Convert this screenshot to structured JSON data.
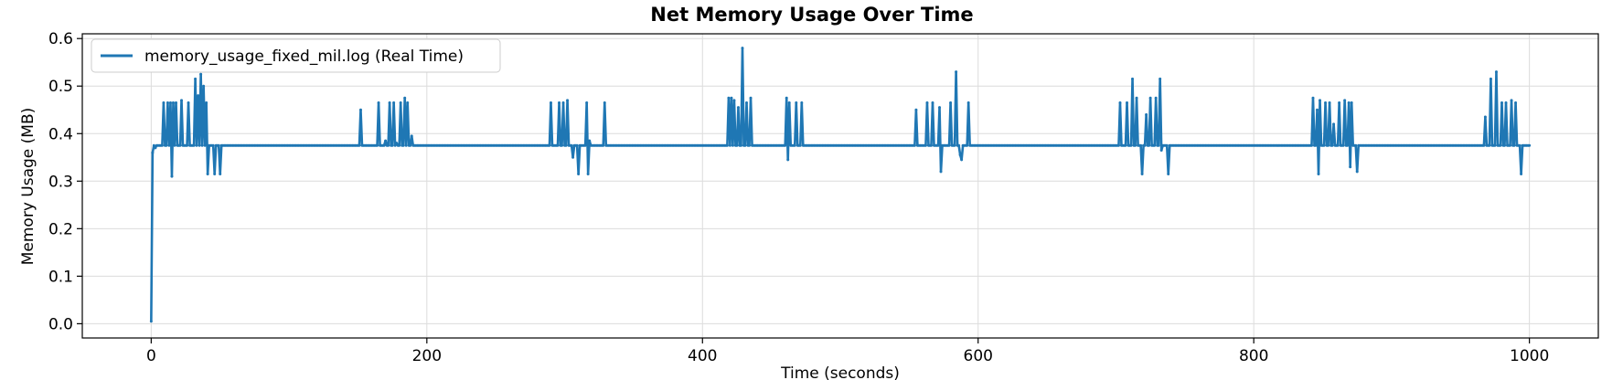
{
  "chart_data": {
    "type": "line",
    "title": "Net Memory Usage Over Time",
    "xlabel": "Time (seconds)",
    "ylabel": "Memory Usage (MB)",
    "xlim": [
      -50,
      1050
    ],
    "ylim": [
      -0.03,
      0.61
    ],
    "xticks": [
      0,
      200,
      400,
      600,
      800,
      1000
    ],
    "yticks": [
      0.0,
      0.1,
      0.2,
      0.3,
      0.4,
      0.5,
      0.6
    ],
    "ytick_labels": [
      "0.0",
      "0.1",
      "0.2",
      "0.3",
      "0.4",
      "0.5",
      "0.6"
    ],
    "grid": true,
    "legend_position": "top-left",
    "series": [
      {
        "name": "memory_usage_fixed_mil.log (Real Time)",
        "color": "#1f77b4",
        "baseline": 0.375,
        "x_range": [
          0,
          1000
        ],
        "points": [
          [
            0,
            0.005
          ],
          [
            1,
            0.36
          ],
          [
            3,
            0.37
          ],
          [
            5,
            0.375
          ],
          [
            8,
            0.375
          ],
          [
            9,
            0.465
          ],
          [
            10,
            0.375
          ],
          [
            12,
            0.465
          ],
          [
            13,
            0.375
          ],
          [
            14,
            0.465
          ],
          [
            15,
            0.31
          ],
          [
            16,
            0.465
          ],
          [
            17,
            0.375
          ],
          [
            18,
            0.465
          ],
          [
            19,
            0.375
          ],
          [
            22,
            0.47
          ],
          [
            23,
            0.375
          ],
          [
            27,
            0.465
          ],
          [
            28,
            0.375
          ],
          [
            32,
            0.515
          ],
          [
            33,
            0.375
          ],
          [
            34,
            0.48
          ],
          [
            35,
            0.375
          ],
          [
            36,
            0.525
          ],
          [
            37,
            0.375
          ],
          [
            38,
            0.5
          ],
          [
            39,
            0.375
          ],
          [
            40,
            0.465
          ],
          [
            41,
            0.315
          ],
          [
            42,
            0.375
          ],
          [
            46,
            0.315
          ],
          [
            47,
            0.375
          ],
          [
            50,
            0.315
          ],
          [
            51,
            0.375
          ],
          [
            152,
            0.45
          ],
          [
            153,
            0.375
          ],
          [
            165,
            0.465
          ],
          [
            166,
            0.375
          ],
          [
            170,
            0.385
          ],
          [
            171,
            0.375
          ],
          [
            173,
            0.465
          ],
          [
            174,
            0.375
          ],
          [
            176,
            0.465
          ],
          [
            177,
            0.375
          ],
          [
            178,
            0.38
          ],
          [
            179,
            0.375
          ],
          [
            181,
            0.465
          ],
          [
            182,
            0.375
          ],
          [
            184,
            0.475
          ],
          [
            185,
            0.375
          ],
          [
            186,
            0.465
          ],
          [
            187,
            0.375
          ],
          [
            189,
            0.395
          ],
          [
            190,
            0.375
          ],
          [
            290,
            0.465
          ],
          [
            291,
            0.375
          ],
          [
            296,
            0.465
          ],
          [
            297,
            0.375
          ],
          [
            299,
            0.465
          ],
          [
            300,
            0.375
          ],
          [
            302,
            0.47
          ],
          [
            303,
            0.375
          ],
          [
            306,
            0.35
          ],
          [
            307,
            0.375
          ],
          [
            310,
            0.315
          ],
          [
            311,
            0.375
          ],
          [
            316,
            0.465
          ],
          [
            317,
            0.315
          ],
          [
            318,
            0.385
          ],
          [
            319,
            0.375
          ],
          [
            329,
            0.465
          ],
          [
            330,
            0.375
          ],
          [
            419,
            0.475
          ],
          [
            420,
            0.375
          ],
          [
            421,
            0.475
          ],
          [
            422,
            0.375
          ],
          [
            423,
            0.47
          ],
          [
            424,
            0.375
          ],
          [
            426,
            0.455
          ],
          [
            427,
            0.375
          ],
          [
            429,
            0.58
          ],
          [
            430,
            0.375
          ],
          [
            432,
            0.465
          ],
          [
            433,
            0.375
          ],
          [
            435,
            0.475
          ],
          [
            436,
            0.375
          ],
          [
            461,
            0.475
          ],
          [
            462,
            0.345
          ],
          [
            463,
            0.465
          ],
          [
            464,
            0.375
          ],
          [
            468,
            0.465
          ],
          [
            469,
            0.375
          ],
          [
            472,
            0.465
          ],
          [
            473,
            0.375
          ],
          [
            555,
            0.45
          ],
          [
            556,
            0.375
          ],
          [
            563,
            0.465
          ],
          [
            564,
            0.375
          ],
          [
            567,
            0.465
          ],
          [
            568,
            0.375
          ],
          [
            572,
            0.455
          ],
          [
            573,
            0.32
          ],
          [
            574,
            0.375
          ],
          [
            580,
            0.465
          ],
          [
            581,
            0.375
          ],
          [
            584,
            0.53
          ],
          [
            585,
            0.375
          ],
          [
            587,
            0.355
          ],
          [
            588,
            0.345
          ],
          [
            589,
            0.375
          ],
          [
            593,
            0.465
          ],
          [
            594,
            0.375
          ],
          [
            703,
            0.465
          ],
          [
            704,
            0.375
          ],
          [
            708,
            0.465
          ],
          [
            709,
            0.375
          ],
          [
            712,
            0.515
          ],
          [
            713,
            0.375
          ],
          [
            715,
            0.475
          ],
          [
            716,
            0.375
          ],
          [
            719,
            0.315
          ],
          [
            720,
            0.375
          ],
          [
            722,
            0.44
          ],
          [
            723,
            0.375
          ],
          [
            725,
            0.475
          ],
          [
            726,
            0.375
          ],
          [
            729,
            0.475
          ],
          [
            730,
            0.375
          ],
          [
            732,
            0.515
          ],
          [
            733,
            0.365
          ],
          [
            734,
            0.375
          ],
          [
            738,
            0.315
          ],
          [
            739,
            0.375
          ],
          [
            843,
            0.475
          ],
          [
            844,
            0.375
          ],
          [
            846,
            0.45
          ],
          [
            847,
            0.315
          ],
          [
            848,
            0.47
          ],
          [
            849,
            0.375
          ],
          [
            852,
            0.465
          ],
          [
            853,
            0.375
          ],
          [
            855,
            0.465
          ],
          [
            856,
            0.375
          ],
          [
            858,
            0.42
          ],
          [
            859,
            0.375
          ],
          [
            862,
            0.465
          ],
          [
            863,
            0.375
          ],
          [
            866,
            0.47
          ],
          [
            867,
            0.375
          ],
          [
            869,
            0.465
          ],
          [
            870,
            0.33
          ],
          [
            871,
            0.465
          ],
          [
            872,
            0.375
          ],
          [
            875,
            0.32
          ],
          [
            876,
            0.375
          ],
          [
            968,
            0.435
          ],
          [
            969,
            0.375
          ],
          [
            972,
            0.515
          ],
          [
            973,
            0.375
          ],
          [
            976,
            0.53
          ],
          [
            977,
            0.375
          ],
          [
            980,
            0.465
          ],
          [
            981,
            0.375
          ],
          [
            983,
            0.465
          ],
          [
            984,
            0.375
          ],
          [
            987,
            0.47
          ],
          [
            988,
            0.375
          ],
          [
            990,
            0.465
          ],
          [
            991,
            0.375
          ],
          [
            994,
            0.315
          ],
          [
            995,
            0.375
          ],
          [
            1000,
            0.375
          ]
        ]
      }
    ]
  }
}
